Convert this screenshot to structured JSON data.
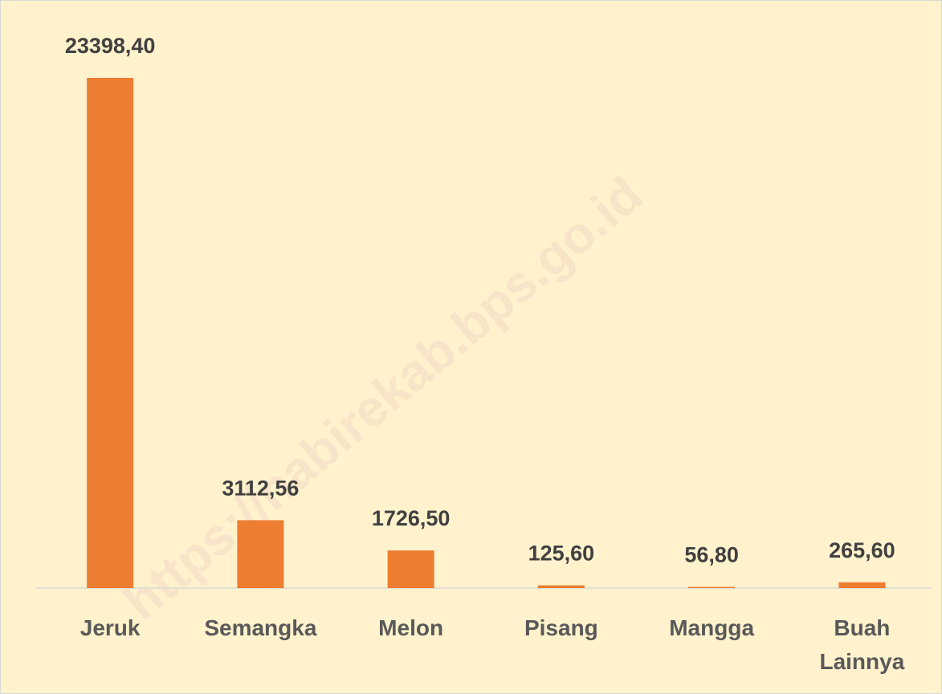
{
  "chart_data": {
    "type": "bar",
    "categories": [
      "Jeruk",
      "Semangka",
      "Melon",
      "Pisang",
      "Mangga",
      "Buah Lainnya"
    ],
    "values": [
      23398.4,
      3112.56,
      1726.5,
      125.6,
      56.8,
      265.6
    ],
    "value_labels": [
      "23398,40",
      "3112,56",
      "1726,50",
      "125,60",
      "56,80",
      "265,60"
    ],
    "color": "#ed7d31",
    "ylim": [
      0,
      25000
    ],
    "watermark": "https://nabirekab.bps.go.id"
  }
}
